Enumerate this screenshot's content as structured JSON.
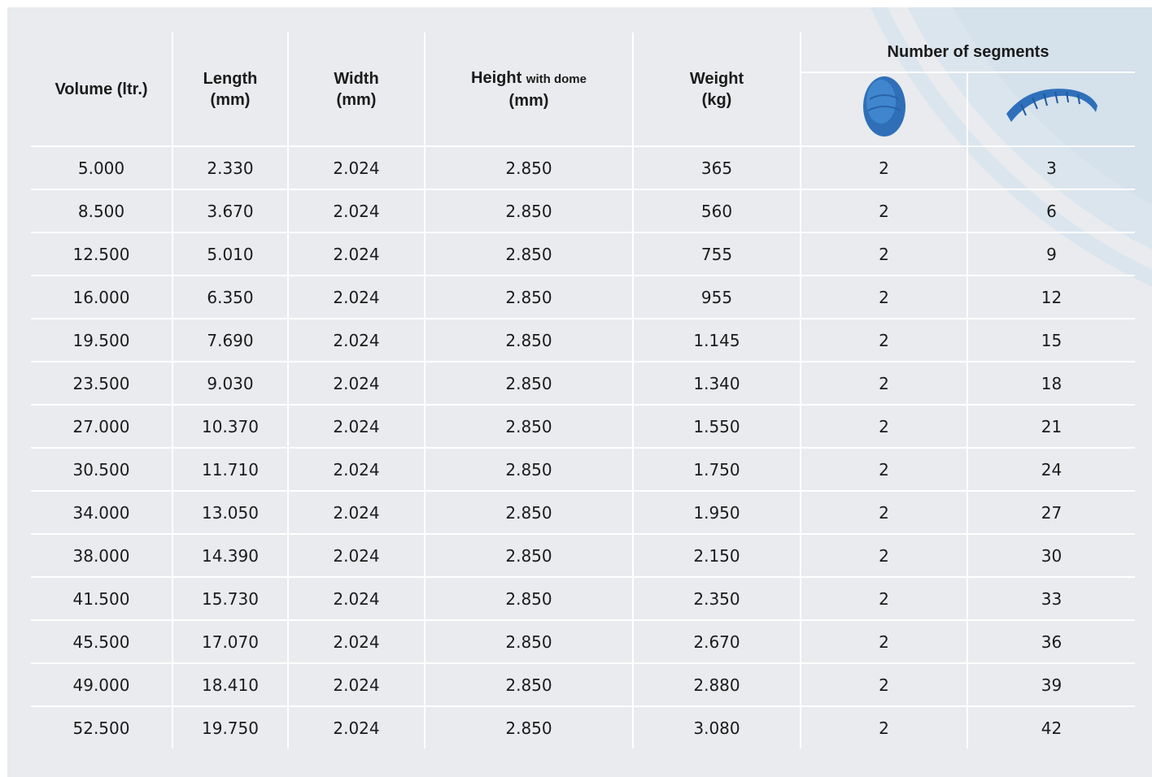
{
  "table": {
    "headers": [
      {
        "text": "Volume (ltr.)"
      },
      {
        "lines": [
          "Length",
          "(mm)"
        ]
      },
      {
        "lines": [
          "Width",
          "(mm)"
        ]
      },
      {
        "lines": [
          "Height",
          "(mm)"
        ],
        "note": "with dome"
      },
      {
        "lines": [
          "Weight",
          "(kg)"
        ]
      }
    ],
    "group_header": "Number of segments",
    "rows": [
      [
        "5.000",
        "2.330",
        "2.024",
        "2.850",
        "365",
        "2",
        "3"
      ],
      [
        "8.500",
        "3.670",
        "2.024",
        "2.850",
        "560",
        "2",
        "6"
      ],
      [
        "12.500",
        "5.010",
        "2.024",
        "2.850",
        "755",
        "2",
        "9"
      ],
      [
        "16.000",
        "6.350",
        "2.024",
        "2.850",
        "955",
        "2",
        "12"
      ],
      [
        "19.500",
        "7.690",
        "2.024",
        "2.850",
        "1.145",
        "2",
        "15"
      ],
      [
        "23.500",
        "9.030",
        "2.024",
        "2.850",
        "1.340",
        "2",
        "18"
      ],
      [
        "27.000",
        "10.370",
        "2.024",
        "2.850",
        "1.550",
        "2",
        "21"
      ],
      [
        "30.500",
        "11.710",
        "2.024",
        "2.850",
        "1.750",
        "2",
        "24"
      ],
      [
        "34.000",
        "13.050",
        "2.024",
        "2.850",
        "1.950",
        "2",
        "27"
      ],
      [
        "38.000",
        "14.390",
        "2.024",
        "2.850",
        "2.150",
        "2",
        "30"
      ],
      [
        "41.500",
        "15.730",
        "2.024",
        "2.850",
        "2.350",
        "2",
        "33"
      ],
      [
        "45.500",
        "17.070",
        "2.024",
        "2.850",
        "2.670",
        "2",
        "36"
      ],
      [
        "49.000",
        "18.410",
        "2.024",
        "2.850",
        "2.880",
        "2",
        "39"
      ],
      [
        "52.500",
        "19.750",
        "2.024",
        "2.850",
        "3.080",
        "2",
        "42"
      ]
    ]
  }
}
